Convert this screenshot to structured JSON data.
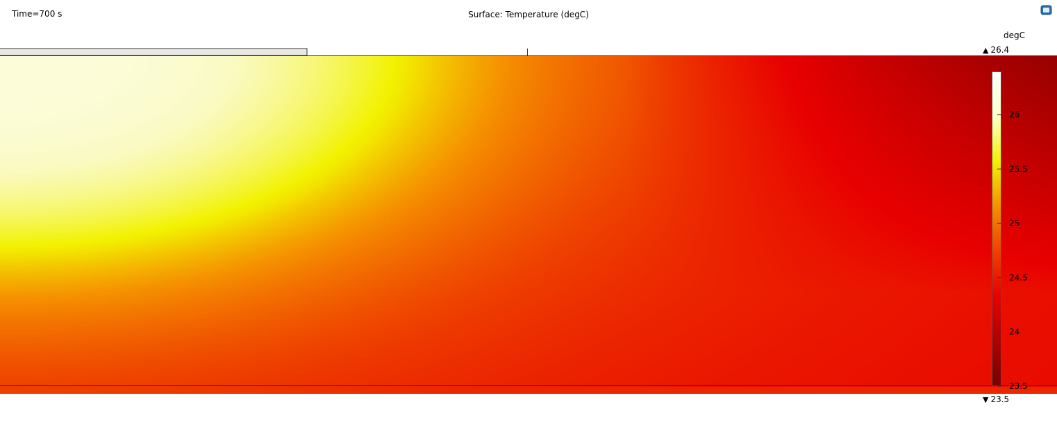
{
  "header": {
    "time_label": "Time=700 s",
    "title": "Surface: Temperature (degC)"
  },
  "colorbar": {
    "unit": "degC",
    "max_label": "26.4",
    "min_label": "23.5",
    "colormap": [
      "#7a0000",
      "#b00000",
      "#e80000",
      "#f04000",
      "#f59000",
      "#f2f200",
      "#ffffc8",
      "#ffffff"
    ]
  },
  "chart_data": {
    "type": "heatmap",
    "title": "Surface: Temperature (degC)",
    "time": "Time=700 s",
    "unit": "degC",
    "range": [
      23.5,
      26.4
    ],
    "ticks": [
      {
        "value": 26,
        "label": "26"
      },
      {
        "value": 25.5,
        "label": "25.5"
      },
      {
        "value": 25,
        "label": "25"
      },
      {
        "value": 24.5,
        "label": "24.5"
      },
      {
        "value": 24,
        "label": "24"
      },
      {
        "value": 23.5,
        "label": "23.5"
      }
    ]
  }
}
